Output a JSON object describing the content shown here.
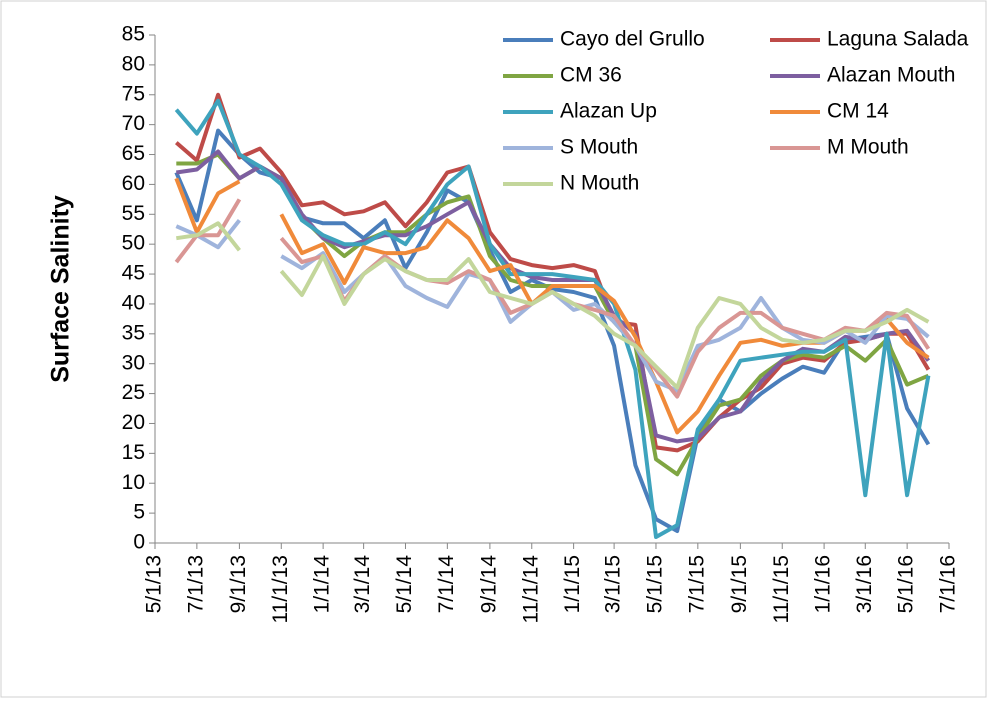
{
  "chart_data": {
    "type": "line",
    "y_label": "Surface Salinity",
    "x": [
      "6/1/13",
      "7/1/13",
      "8/1/13",
      "9/1/13",
      "10/1/13",
      "11/1/13",
      "12/1/13",
      "1/1/14",
      "2/1/14",
      "3/1/14",
      "4/1/14",
      "5/1/14",
      "6/1/14",
      "7/1/14",
      "8/1/14",
      "9/1/14",
      "10/1/14",
      "11/1/14",
      "12/1/14",
      "1/1/15",
      "2/1/15",
      "3/1/15",
      "4/1/15",
      "5/1/15",
      "6/1/15",
      "7/1/15",
      "8/1/15",
      "9/1/15",
      "10/1/15",
      "11/1/15",
      "12/1/15",
      "1/1/16",
      "2/1/16",
      "3/1/16",
      "4/1/16",
      "5/1/16",
      "6/1/16"
    ],
    "xlim": [
      "5/1/13",
      "7/1/16"
    ],
    "xticks": [
      "5/1/13",
      "7/1/13",
      "9/1/13",
      "11/1/13",
      "1/1/14",
      "3/1/14",
      "5/1/14",
      "7/1/14",
      "9/1/14",
      "11/1/14",
      "1/1/15",
      "3/1/15",
      "5/1/15",
      "7/1/15",
      "9/1/15",
      "11/1/15",
      "1/1/16",
      "3/1/16",
      "5/1/16",
      "7/1/16"
    ],
    "ylim": [
      0,
      85
    ],
    "yticks": [
      0,
      5,
      10,
      15,
      20,
      25,
      30,
      35,
      40,
      45,
      50,
      55,
      60,
      65,
      70,
      75,
      80,
      85
    ],
    "legend": "top-right",
    "series": [
      {
        "name": "Cayo del Grullo",
        "color": "#4a7ebb",
        "values": [
          62,
          54,
          69,
          65,
          62,
          61,
          54.5,
          53.5,
          53.5,
          51,
          54,
          46,
          52,
          59,
          57,
          49,
          42,
          44,
          42.5,
          42,
          41,
          33,
          13,
          4,
          2,
          18,
          24,
          22,
          25,
          27.5,
          29.5,
          28.5,
          34,
          34.5,
          35,
          22.5,
          16.5
        ]
      },
      {
        "name": "Laguna Salada",
        "color": "#be4b48",
        "values": [
          67,
          64,
          75,
          64.5,
          66,
          62,
          56.5,
          57,
          55,
          55.5,
          57,
          53,
          57,
          62,
          63,
          52,
          47.5,
          46.5,
          46,
          46.5,
          45.5,
          37,
          36.5,
          16,
          15.5,
          17,
          21,
          24,
          26,
          30,
          31,
          30.5,
          33.5,
          34,
          35,
          35,
          29
        ]
      },
      {
        "name": "CM 36",
        "color": "#7fa542",
        "values": [
          63.5,
          63.5,
          65,
          61,
          63,
          61,
          54.5,
          51,
          48,
          50.5,
          52,
          52,
          55,
          57,
          58,
          48,
          44,
          43,
          43,
          43,
          43,
          37,
          33,
          14,
          11.5,
          17.5,
          23,
          24,
          28,
          30.5,
          31.5,
          31,
          33,
          30.5,
          34,
          26.5,
          28
        ]
      },
      {
        "name": "Alazan Mouth",
        "color": "#7d5fa0",
        "values": [
          62,
          62.5,
          65.5,
          61,
          63,
          61,
          55,
          51,
          49.5,
          50.5,
          51.5,
          51.5,
          53,
          55,
          57,
          50,
          46,
          44.5,
          44,
          44,
          44,
          38,
          35,
          18,
          17,
          17.5,
          21,
          22,
          27,
          30.5,
          32.5,
          32,
          34.5,
          34,
          35,
          35.5,
          30.5
        ]
      },
      {
        "name": "Alazan Up",
        "color": "#3ea3bd",
        "values": [
          72.5,
          68.5,
          74,
          65,
          63,
          60,
          54,
          51.5,
          50,
          50,
          52,
          50,
          55,
          60,
          63,
          50,
          45,
          45,
          45,
          44.5,
          44,
          40,
          29,
          1,
          3,
          19,
          24,
          30.5,
          31,
          31.5,
          32,
          32,
          34,
          8,
          35,
          8,
          28
        ]
      },
      {
        "name": "CM 14",
        "color": "#f08a3a",
        "values": [
          61,
          52,
          58.5,
          60.5,
          null,
          55,
          48.5,
          50,
          43.5,
          49.5,
          48.5,
          48.5,
          49.5,
          54,
          51,
          45.5,
          46.5,
          40,
          43,
          43,
          43,
          40.5,
          34.5,
          27,
          18.5,
          22,
          28,
          33.5,
          34,
          33,
          33.5,
          33.5,
          35.5,
          35.5,
          37.5,
          33.5,
          31
        ]
      },
      {
        "name": "S Mouth",
        "color": "#9fb4dc",
        "values": [
          53,
          51.5,
          49.5,
          54,
          null,
          48,
          46,
          48.5,
          42,
          45,
          48,
          43,
          41,
          39.5,
          45,
          44,
          37,
          40,
          42,
          39,
          40,
          37,
          33,
          27,
          25.5,
          33,
          34,
          36,
          41,
          36,
          34,
          33.5,
          35.5,
          33.5,
          38,
          37.5,
          34.5
        ]
      },
      {
        "name": "M Mouth",
        "color": "#d99694",
        "values": [
          47,
          51.5,
          51.5,
          57.5,
          null,
          51,
          47,
          48,
          40.5,
          45,
          48,
          45.5,
          44,
          43.5,
          45.5,
          44,
          38.5,
          40,
          42,
          40,
          39,
          38,
          33,
          29,
          24.5,
          32,
          36,
          38.5,
          38.5,
          36,
          35,
          34,
          36,
          35.5,
          38.5,
          38,
          32.5
        ]
      },
      {
        "name": "N Mouth",
        "color": "#c3d69b",
        "values": [
          51,
          51.5,
          53.5,
          49,
          null,
          45.5,
          41.5,
          48,
          40,
          45,
          47.5,
          45.5,
          44,
          44,
          47.5,
          42,
          41,
          40,
          42,
          40,
          38,
          35,
          33,
          29.5,
          26,
          36,
          41,
          40,
          36,
          34,
          33.5,
          34,
          35.5,
          35.5,
          37,
          39,
          37
        ]
      }
    ]
  }
}
